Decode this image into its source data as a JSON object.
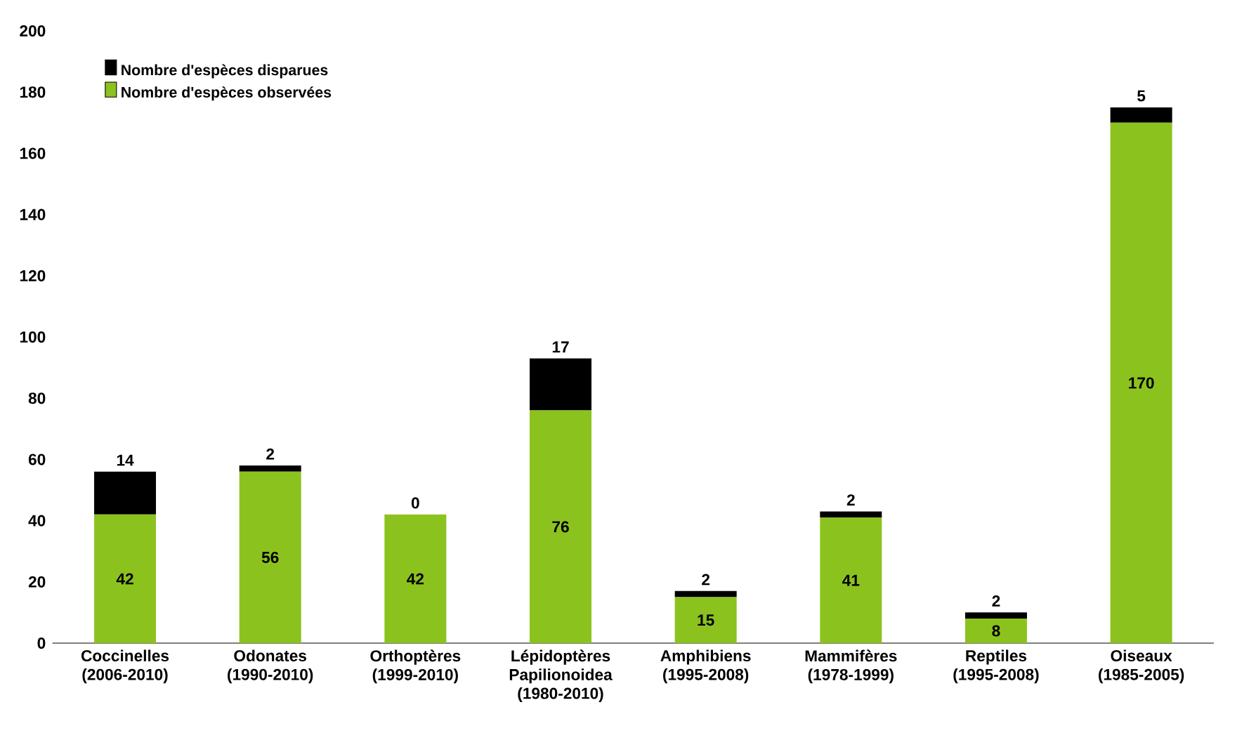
{
  "chart_data": {
    "type": "bar",
    "stacked": true,
    "categories": [
      "Coccinelles (2006-2010)",
      "Odonates (1990-2010)",
      "Orthoptères (1999-2010)",
      "Lépidoptères Papilionoidea (1980-2010)",
      "Amphibiens (1995-2008)",
      "Mammifères (1978-1999)",
      "Reptiles (1995-2008)",
      "Oiseaux (1985-2005)"
    ],
    "series": [
      {
        "name": "Nombre d'espèces observées",
        "color": "#8cc21e",
        "values": [
          42,
          56,
          42,
          76,
          15,
          41,
          8,
          170
        ]
      },
      {
        "name": "Nombre d'espèces disparues",
        "color": "#000000",
        "values": [
          14,
          2,
          0,
          17,
          2,
          2,
          2,
          5
        ]
      }
    ],
    "ylim": [
      0,
      200
    ],
    "yticks": [
      0,
      20,
      40,
      60,
      80,
      100,
      120,
      140,
      160,
      180,
      200
    ],
    "data_labels": true,
    "legend": "top left",
    "grid": false
  }
}
